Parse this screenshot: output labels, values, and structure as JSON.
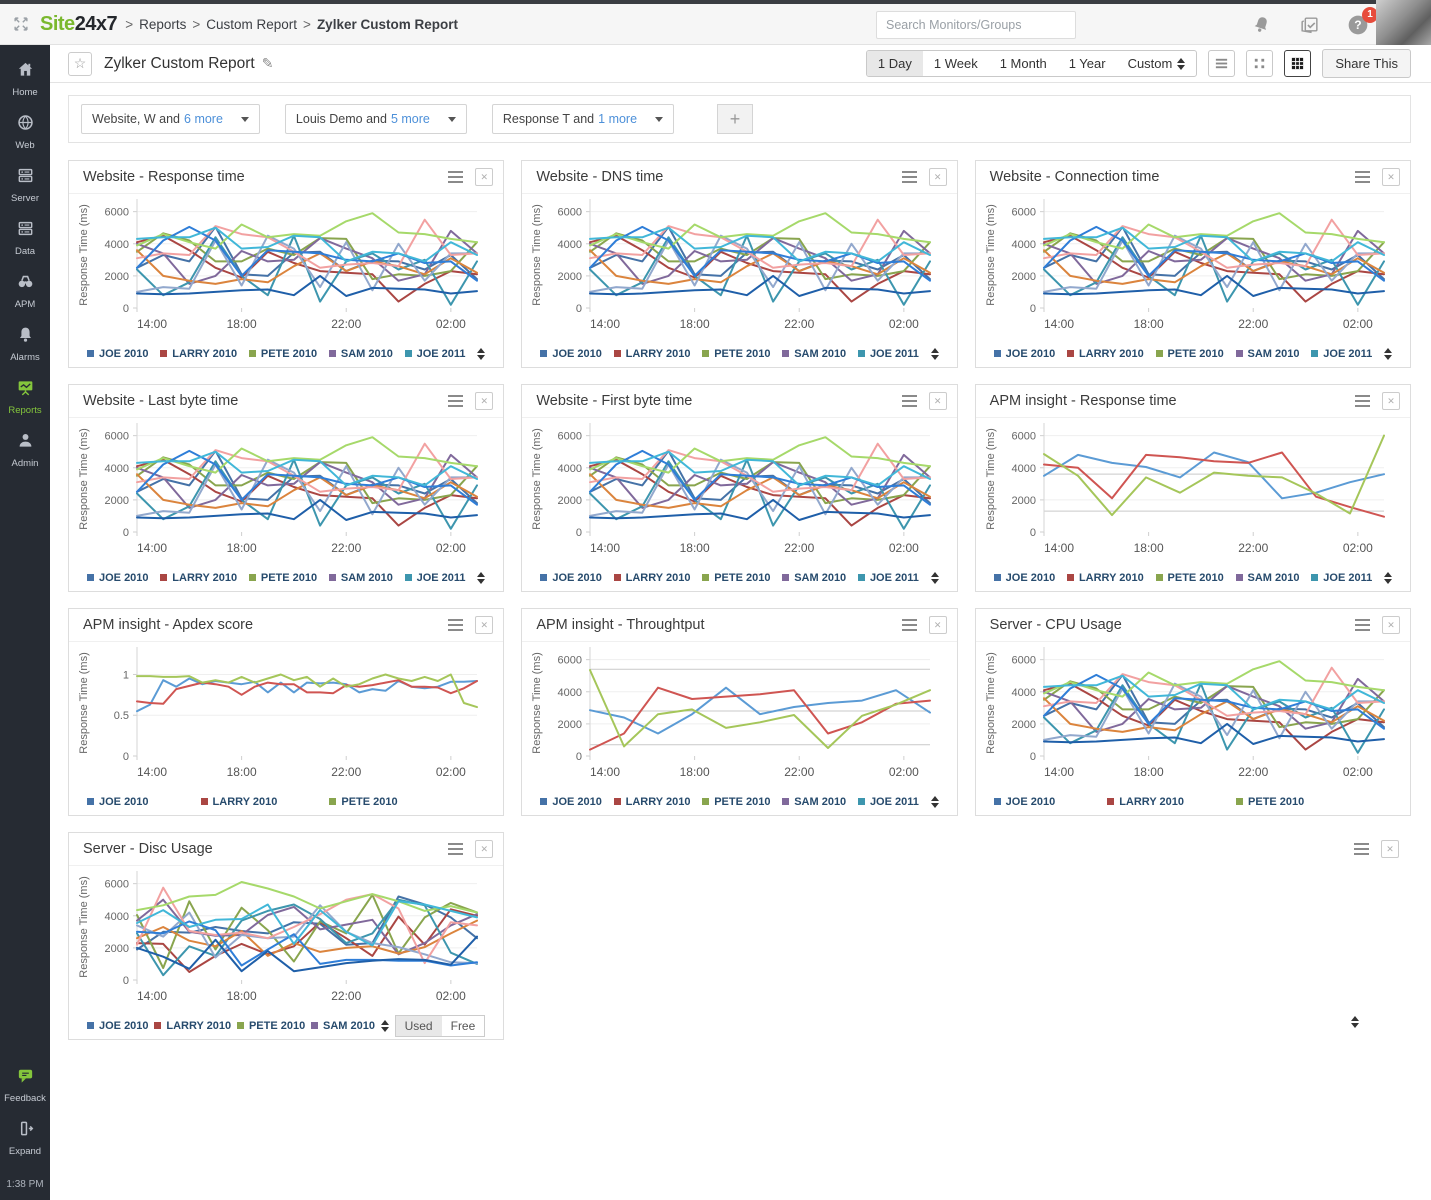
{
  "topbar": {
    "logo_site": "Site",
    "logo_247": "24x7",
    "separator": ">",
    "breadcrumb": [
      "Reports",
      "Custom Report",
      "Zylker Custom Report"
    ],
    "search_placeholder": "Search Monitors/Groups",
    "icons": [
      "app-switcher-icon",
      "bell-icon",
      "docs-check-icon",
      "help-icon"
    ],
    "help_badge_count": "1"
  },
  "sidebar": {
    "items": [
      {
        "label": "Home",
        "icon": "home-icon",
        "active": false
      },
      {
        "label": "Web",
        "icon": "globe-icon",
        "active": false
      },
      {
        "label": "Server",
        "icon": "server-icon",
        "active": false
      },
      {
        "label": "Data",
        "icon": "data-icon",
        "active": false
      },
      {
        "label": "APM",
        "icon": "binoculars-icon",
        "active": false
      },
      {
        "label": "Alarms",
        "icon": "bell-icon",
        "active": false
      },
      {
        "label": "Reports",
        "icon": "reports-icon",
        "active": true
      },
      {
        "label": "Admin",
        "icon": "person-icon",
        "active": false
      }
    ],
    "feedback_label": "Feedback",
    "expand_label": "Expand",
    "time": "1:38 PM"
  },
  "header": {
    "title": "Zylker Custom Report",
    "ranges": [
      "1 Day",
      "1 Week",
      "1 Month",
      "1 Year",
      "Custom"
    ],
    "active_range": "1 Day",
    "share_label": "Share This"
  },
  "filters": {
    "dropdowns": [
      {
        "text": "Website, W and",
        "more": "6 more"
      },
      {
        "text": "Louis Demo and",
        "more": "5 more"
      },
      {
        "text": "Response T and",
        "more": "1 more"
      }
    ],
    "add_label": "+"
  },
  "chart_data": {
    "type": "line",
    "common": {
      "ylabel": "Response Time (ms)",
      "yticks": [
        0,
        2000,
        4000,
        6000
      ],
      "ylim": [
        0,
        6600
      ],
      "xticklabels": [
        "14:00",
        "18:00",
        "22:00",
        "02:00"
      ],
      "grid": true,
      "legend_position": "bottom"
    },
    "legends": {
      "L5": [
        {
          "label": "JOE 2010",
          "color": "#4572A7"
        },
        {
          "label": "LARRY 2010",
          "color": "#AA4643"
        },
        {
          "label": "PETE 2010",
          "color": "#89A54E"
        },
        {
          "label": "SAM 2010",
          "color": "#80699B"
        },
        {
          "label": "JOE 2011",
          "color": "#3D96AE"
        }
      ],
      "L4": [
        {
          "label": "JOE 2010",
          "color": "#4572A7"
        },
        {
          "label": "LARRY 2010",
          "color": "#AA4643"
        },
        {
          "label": "PETE 2010",
          "color": "#89A54E"
        },
        {
          "label": "SAM 2010",
          "color": "#80699B"
        }
      ],
      "L3": [
        {
          "label": "JOE 2010",
          "color": "#4572A7"
        },
        {
          "label": "LARRY 2010",
          "color": "#AA4643"
        },
        {
          "label": "PETE 2010",
          "color": "#89A54E"
        }
      ]
    },
    "series_sets": {
      "A": [
        {
          "name": "JOE 2010",
          "color": "#4572A7",
          "values": [
            2500,
            3300,
            2900,
            5050,
            2100,
            2000,
            3450,
            3500,
            2300,
            2950,
            2900,
            2400,
            3300,
            1800
          ]
        },
        {
          "name": "LARRY 2010",
          "color": "#AA4643",
          "values": [
            4100,
            4500,
            3600,
            2500,
            1900,
            3500,
            2800,
            2300,
            2200,
            2100,
            400,
            1500,
            2300,
            2100
          ]
        },
        {
          "name": "PETE 2010",
          "color": "#89A54E",
          "values": [
            3500,
            4650,
            4200,
            2900,
            2900,
            3700,
            3300,
            4350,
            4300,
            1800,
            2100,
            2000,
            2300,
            4100
          ]
        },
        {
          "name": "SAM 2010",
          "color": "#80699B",
          "values": [
            4000,
            3400,
            1500,
            2000,
            3550,
            2900,
            3000,
            4350,
            3700,
            3100,
            1700,
            2100,
            4800,
            3400
          ]
        },
        {
          "name": "JOE 2011",
          "color": "#3D96AE",
          "values": [
            2400,
            800,
            1600,
            4400,
            2000,
            800,
            4500,
            400,
            2900,
            3400,
            2400,
            3000,
            200,
            2900
          ]
        },
        {
          "name": "",
          "color": "#DB843D",
          "values": [
            3600,
            2000,
            1700,
            1500,
            1800,
            1600,
            2600,
            3400,
            2300,
            2900,
            2600,
            2100,
            3100,
            2200
          ]
        },
        {
          "name": "",
          "color": "#92A8CD",
          "values": [
            1000,
            1300,
            1200,
            4200,
            1400,
            4500,
            3700,
            1300,
            4100,
            1100,
            4000,
            1700,
            3400,
            3400
          ]
        },
        {
          "name": "",
          "color": "#F2A1A1",
          "values": [
            3100,
            3400,
            3300,
            5100,
            4600,
            4400,
            3500,
            2500,
            2700,
            2800,
            2600,
            5500,
            3300,
            3400
          ]
        },
        {
          "name": "",
          "color": "#A6D96A",
          "values": [
            3900,
            4600,
            4100,
            3700,
            5200,
            4400,
            4600,
            4500,
            5400,
            5900,
            4700,
            4600,
            4300,
            4100
          ]
        },
        {
          "name": "",
          "color": "#2F7ED8",
          "values": [
            2500,
            4200,
            5050,
            4200,
            2000,
            3600,
            3500,
            3400,
            3000,
            2900,
            3400,
            2800,
            2900,
            1700
          ]
        },
        {
          "name": "",
          "color": "#41B7D8",
          "values": [
            4300,
            4400,
            4400,
            5000,
            3700,
            3800,
            4500,
            4400,
            2900,
            3500,
            3400,
            2900,
            4100,
            3300
          ]
        },
        {
          "name": "",
          "color": "#1F5FA9",
          "values": [
            900,
            850,
            900,
            1000,
            1100,
            1150,
            800,
            2000,
            750,
            1250,
            1200,
            1150,
            900,
            1050
          ]
        }
      ],
      "B": [
        {
          "name": "JOE 2010",
          "color": "#4572A7",
          "values": [
            1900,
            3000,
            2950,
            3300,
            3050,
            2900,
            3600,
            3500,
            2200,
            2300,
            5200,
            4700,
            3900,
            2600
          ]
        },
        {
          "name": "LARRY 2010",
          "color": "#AA4643",
          "values": [
            2300,
            2250,
            500,
            1500,
            2250,
            1600,
            2100,
            3600,
            2600,
            1500,
            3950,
            2200,
            4400,
            4000
          ]
        },
        {
          "name": "PETE 2010",
          "color": "#89A54E",
          "values": [
            4050,
            750,
            4900,
            1900,
            4500,
            3100,
            1150,
            3650,
            2900,
            5300,
            1650,
            3900,
            4800,
            4200
          ]
        },
        {
          "name": "SAM 2010",
          "color": "#80699B",
          "values": [
            3700,
            5000,
            3000,
            2750,
            2800,
            4050,
            4550,
            3150,
            3450,
            3750,
            1600,
            2300,
            3400,
            4100
          ]
        },
        {
          "name": "",
          "color": "#3D96AE",
          "values": [
            2900,
            300,
            2100,
            1500,
            3700,
            4300,
            4700,
            3800,
            2300,
            2900,
            5000,
            4650,
            1700,
            1000
          ]
        },
        {
          "name": "",
          "color": "#DB843D",
          "values": [
            2600,
            3300,
            2450,
            2100,
            3050,
            1500,
            2300,
            1750,
            2000,
            2100,
            1650,
            2050,
            2900,
            3700
          ]
        },
        {
          "name": "",
          "color": "#92A8CD",
          "values": [
            3400,
            2700,
            4200,
            1400,
            2800,
            2600,
            2700,
            4650,
            3000,
            2300,
            2050,
            1600,
            1100,
            1050
          ]
        },
        {
          "name": "",
          "color": "#F2A1A1",
          "values": [
            2200,
            5750,
            3050,
            2800,
            2950,
            2600,
            3300,
            4100,
            5000,
            5350,
            4450,
            1050,
            3600,
            3400
          ]
        },
        {
          "name": "",
          "color": "#A6D96A",
          "values": [
            4350,
            4650,
            5200,
            5300,
            6100,
            5700,
            5200,
            4450,
            4900,
            5350,
            4900,
            4300,
            4600,
            4200
          ]
        },
        {
          "name": "",
          "color": "#2F7ED8",
          "values": [
            3000,
            2900,
            3650,
            3100,
            900,
            1900,
            2850,
            1000,
            1250,
            1250,
            1200,
            1200,
            900,
            1100
          ]
        },
        {
          "name": "",
          "color": "#41B7D8",
          "values": [
            3550,
            4350,
            3300,
            3750,
            3800,
            4700,
            2250,
            4350,
            3000,
            2150,
            4900,
            4700,
            4300,
            3900
          ]
        },
        {
          "name": "",
          "color": "#1F5FA9",
          "values": [
            2000,
            1450,
            700,
            2500,
            550,
            1800,
            550,
            800,
            1050,
            1200,
            1300,
            1250,
            950,
            2700
          ]
        }
      ],
      "C": [
        {
          "name": "JOE 2010",
          "color": "#5B9BD5",
          "values": [
            3500,
            4800,
            4300,
            4050,
            3400,
            4950,
            4350,
            2100,
            2450,
            3100,
            3600
          ]
        },
        {
          "name": "LARRY 2010",
          "color": "#CF5552",
          "values": [
            4200,
            4000,
            2100,
            4800,
            4650,
            4400,
            4300,
            4950,
            2200,
            1550,
            950
          ]
        },
        {
          "name": "PETE 2010",
          "color": "#A5C65A",
          "values": [
            4850,
            3500,
            1050,
            3400,
            2450,
            3700,
            3500,
            3400,
            2400,
            1150,
            6000
          ]
        }
      ],
      "D": [
        {
          "name": "JOE 2010",
          "color": "#5B9BD5",
          "values": [
            2850,
            2400,
            1400,
            2600,
            4250,
            2600,
            3050,
            3300,
            3450,
            4100,
            2700
          ]
        },
        {
          "name": "LARRY 2010",
          "color": "#CF5552",
          "values": [
            400,
            1400,
            4250,
            3550,
            3700,
            3850,
            4100,
            1400,
            2100,
            3250,
            3450
          ]
        },
        {
          "name": "PETE 2010",
          "color": "#A5C65A",
          "values": [
            5350,
            600,
            2600,
            2900,
            1750,
            2100,
            2550,
            500,
            2500,
            3200,
            4100
          ]
        }
      ],
      "E": [
        {
          "name": "JOE 2010",
          "color": "#5B9BD5",
          "values": [
            0.55,
            0.63,
            0.93,
            0.85,
            0.95,
            0.88,
            0.92,
            0.9,
            0.88,
            0.91,
            0.78,
            0.9,
            0.78,
            0.9,
            0.89,
            0.9,
            0.88,
            0.78,
            0.82,
            0.8,
            0.92,
            0.85,
            0.83,
            0.85,
            0.91,
            0.91,
            0.92
          ]
        },
        {
          "name": "LARRY 2010",
          "color": "#CF5552",
          "values": [
            0.67,
            0.65,
            0.64,
            0.82,
            0.86,
            0.9,
            0.88,
            0.85,
            0.75,
            0.85,
            0.9,
            0.88,
            0.88,
            0.78,
            0.78,
            0.77,
            0.87,
            0.85,
            0.87,
            0.9,
            0.93,
            0.85,
            0.85,
            0.84,
            0.77,
            0.83,
            0.92
          ]
        },
        {
          "name": "PETE 2010",
          "color": "#A5C65A",
          "values": [
            0.98,
            0.98,
            0.97,
            0.97,
            0.98,
            0.9,
            0.93,
            0.9,
            0.97,
            0.9,
            0.95,
            1.0,
            0.93,
            0.97,
            0.85,
            0.95,
            0.85,
            0.88,
            0.95,
            1.0,
            0.95,
            0.92,
            0.97,
            0.92,
            1.0,
            0.65,
            0.6
          ]
        }
      ]
    },
    "panels": [
      {
        "title": "Website - Response time",
        "series_ref": "A",
        "legend_ref": "L5",
        "sort": true
      },
      {
        "title": "Website - DNS  time",
        "series_ref": "A",
        "legend_ref": "L5",
        "sort": true
      },
      {
        "title": "Website - Connection time",
        "series_ref": "A",
        "legend_ref": "L5",
        "sort": true
      },
      {
        "title": "Website - Last byte time",
        "series_ref": "A",
        "legend_ref": "L5",
        "sort": true
      },
      {
        "title": "Website - First byte time",
        "series_ref": "A",
        "legend_ref": "L5",
        "sort": true
      },
      {
        "title": "APM insight - Response time",
        "series_ref": "C",
        "legend_ref": "L5",
        "sort": true,
        "hlines": [
          1300,
          3600
        ]
      },
      {
        "title": "APM insight - Apdex score",
        "series_ref": "E",
        "legend_ref": "L3",
        "sort": false,
        "yticks": [
          0,
          0.5,
          1
        ],
        "ylim": [
          0,
          1.3
        ]
      },
      {
        "title": "APM insight - Throughtput",
        "series_ref": "D",
        "legend_ref": "L5",
        "sort": true,
        "hlines": [
          700,
          2800,
          5400
        ]
      },
      {
        "title": "Server - CPU Usage",
        "series_ref": "A",
        "legend_ref": "L3",
        "sort": false
      },
      {
        "title": "Server - Disc Usage",
        "series_ref": "B",
        "legend_ref": "L4",
        "sort": true,
        "toggle": {
          "options": [
            "Used",
            "Free"
          ],
          "selected": "Used"
        }
      },
      {
        "empty": true
      }
    ]
  }
}
